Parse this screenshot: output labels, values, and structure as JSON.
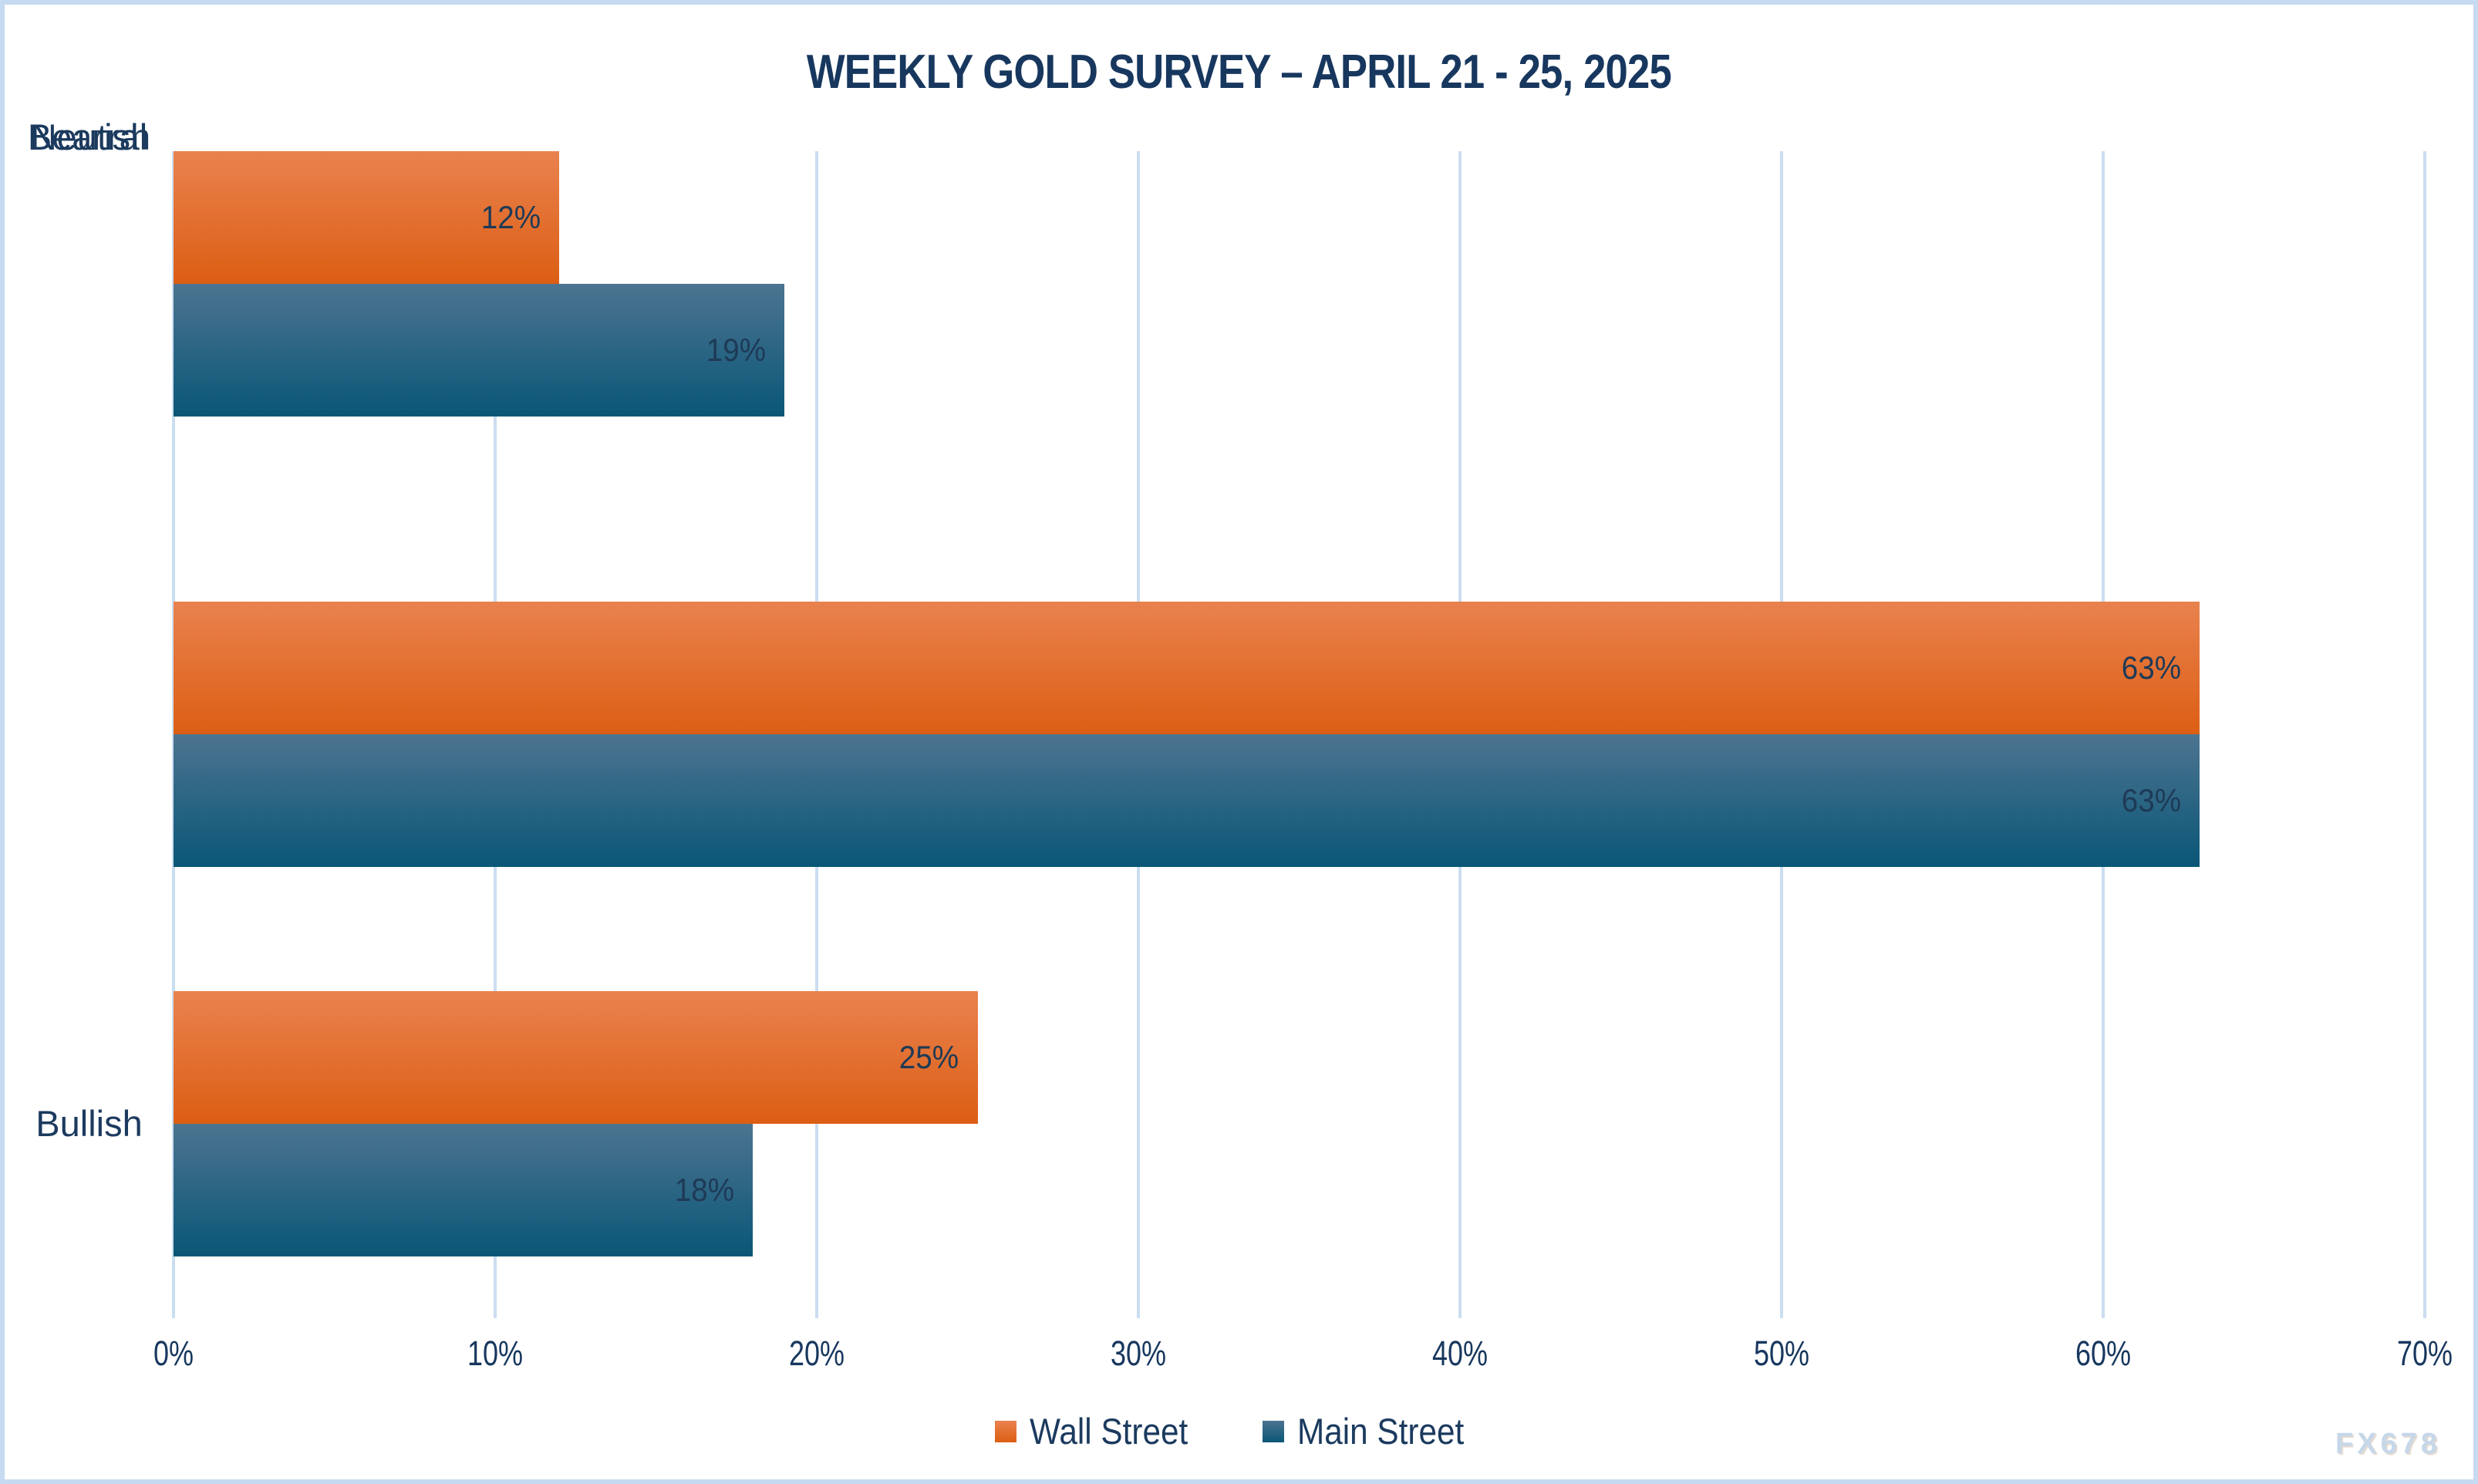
{
  "title": "WEEKLY GOLD SURVEY – APRIL 21 - 25, 2025",
  "watermark": "FX678",
  "colors": {
    "title_text": "#17375e",
    "axis_text": "#17375e",
    "value_text": "#1e3a56",
    "gridline": "#cbddf1",
    "frame_border": "#c6daf1",
    "wall_street_top": "#e9824f",
    "wall_street_bottom": "#dc5e13",
    "main_street_top": "#4c7490",
    "main_street_bottom": "#0a5677",
    "watermark_text": "#c6d7ea"
  },
  "chart_data": {
    "type": "bar",
    "orientation": "horizontal",
    "title": "WEEKLY GOLD SURVEY – APRIL 21 - 25, 2025",
    "categories": [
      "Bullish",
      "Bearish",
      "Neutral"
    ],
    "series": [
      {
        "name": "Wall Street",
        "values": [
          63,
          25,
          12
        ],
        "color_top": "#e9824f",
        "color_bottom": "#dc5e13"
      },
      {
        "name": "Main Street",
        "values": [
          63,
          18,
          19
        ],
        "color_top": "#4c7490",
        "color_bottom": "#0a5677"
      }
    ],
    "value_suffix": "%",
    "value_labels": [
      [
        "63%",
        "25%",
        "12%"
      ],
      [
        "63%",
        "18%",
        "19%"
      ]
    ],
    "xlabel": "",
    "ylabel": "",
    "xlim": [
      0,
      70
    ],
    "x_ticks": [
      "0%",
      "10%",
      "20%",
      "30%",
      "40%",
      "50%",
      "60%",
      "70%"
    ],
    "grid": true,
    "legend_position": "bottom"
  }
}
